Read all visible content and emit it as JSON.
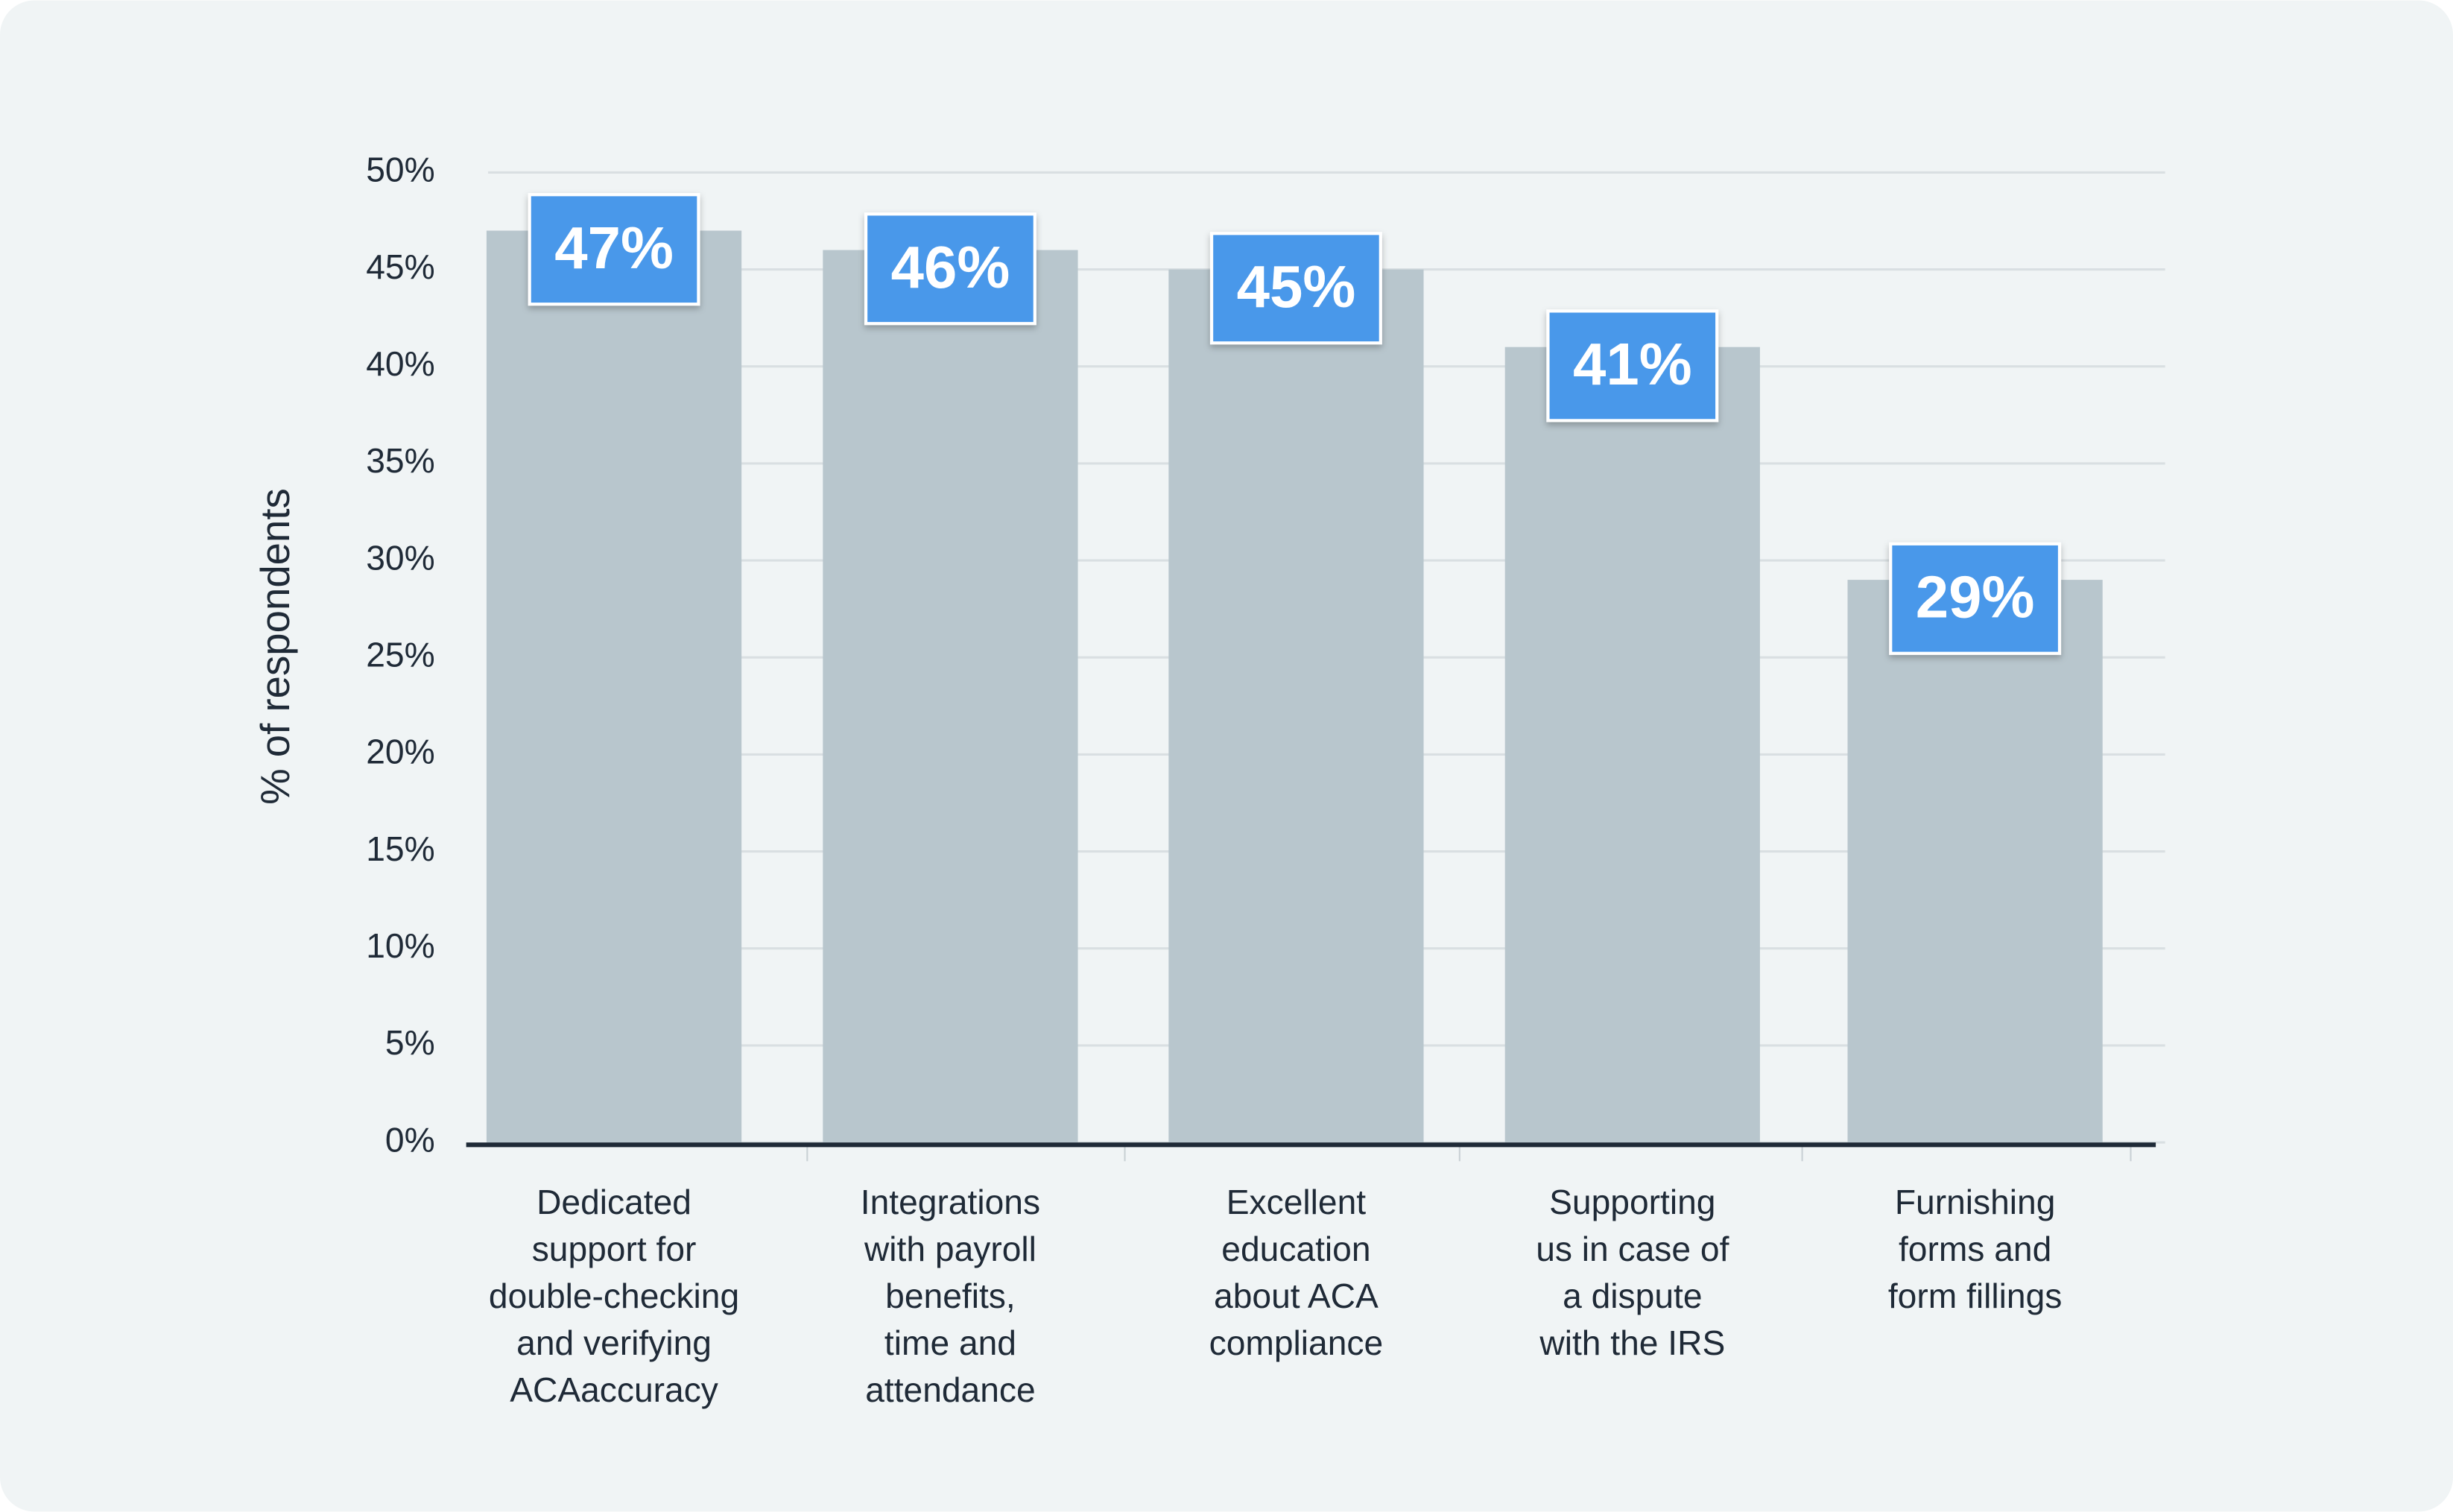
{
  "chart_data": {
    "type": "bar",
    "ylabel": "% of respondents",
    "categories": [
      "Dedicated\nsupport for\ndouble-checking\nand verifying\nACAaccuracy",
      "Integrations\nwith payroll\nbenefits,\ntime and\nattendance",
      "Excellent\neducation\nabout ACA\ncompliance",
      "Supporting\nus in case of\na dispute\nwith the IRS",
      "Furnishing\nforms and\nform fillings"
    ],
    "values": [
      47,
      46,
      45,
      41,
      29
    ],
    "value_labels": [
      "47%",
      "46%",
      "45%",
      "41%",
      "29%"
    ],
    "color": "#b8c6cd",
    "label_color": "#4a98ea",
    "ylim": [
      0,
      50
    ],
    "yticks": [
      {
        "value": 0,
        "label": "0%"
      },
      {
        "value": 5,
        "label": "5%"
      },
      {
        "value": 10,
        "label": "10%"
      },
      {
        "value": 15,
        "label": "15%"
      },
      {
        "value": 20,
        "label": "20%"
      },
      {
        "value": 25,
        "label": "25%"
      },
      {
        "value": 30,
        "label": "30%"
      },
      {
        "value": 35,
        "label": "35%"
      },
      {
        "value": 40,
        "label": "40%"
      },
      {
        "value": 45,
        "label": "45%"
      },
      {
        "value": 50,
        "label": "50%"
      }
    ],
    "grid": true
  }
}
